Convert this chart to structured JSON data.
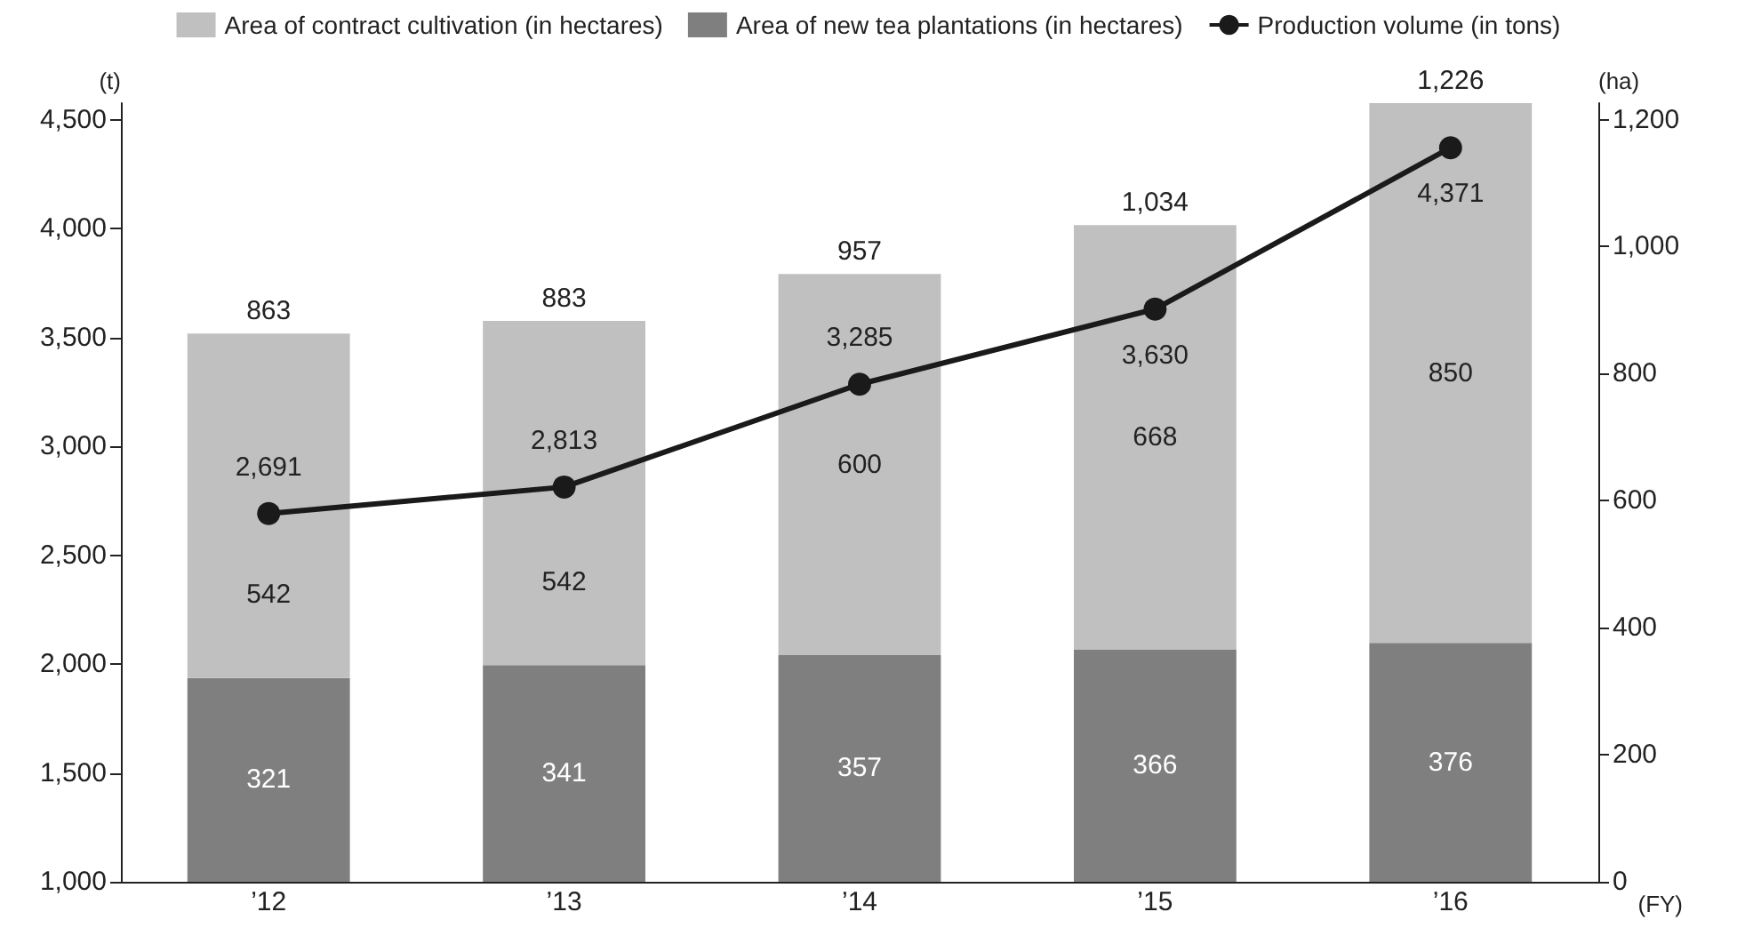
{
  "chart_data": {
    "type": "bar",
    "stacked": true,
    "categories": [
      "’12",
      "’13",
      "’14",
      "’15",
      "’16"
    ],
    "xlabel": "(FY)",
    "ylabel": "(t)",
    "y2label": "(ha)",
    "series": [
      {
        "name": "Area of new tea plantations (in hectares)",
        "axis": "y2",
        "color": "#7f7f80",
        "values": [
          321,
          341,
          357,
          366,
          376
        ]
      },
      {
        "name": "Area of contract cultivation (in hectares)",
        "axis": "y2",
        "color": "#c0c0c1",
        "values": [
          542,
          542,
          600,
          668,
          850
        ]
      },
      {
        "name": "Production volume (in tons)",
        "type": "line",
        "color": "#1a1a1a",
        "values": [
          2691,
          2813,
          3285,
          3630,
          4371
        ],
        "value_labels": [
          "2,691",
          "2,813",
          "3,285",
          "3,630",
          "4,371"
        ]
      }
    ],
    "totals": [
      "863",
      "883",
      "957",
      "1,034",
      "1,226"
    ],
    "data_labels": true,
    "ylim": [
      1000,
      4576
    ],
    "yticks": [
      {
        "value": 1000,
        "label": "1,000"
      },
      {
        "value": 1500,
        "label": "1,500"
      },
      {
        "value": 2000,
        "label": "2,000"
      },
      {
        "value": 2500,
        "label": "2,500"
      },
      {
        "value": 3000,
        "label": "3,000"
      },
      {
        "value": 3500,
        "label": "3,500"
      },
      {
        "value": 4000,
        "label": "4,000"
      },
      {
        "value": 4500,
        "label": "4,500"
      }
    ],
    "y2lim": [
      0,
      1226
    ],
    "y2ticks": [
      0,
      200,
      400,
      600,
      800,
      {
        "value": 1000,
        "label": "1,000"
      },
      {
        "value": 1200,
        "label": "1,200"
      }
    ],
    "grid": false,
    "legend": "top",
    "marker": "circle",
    "line_style": "solid"
  }
}
